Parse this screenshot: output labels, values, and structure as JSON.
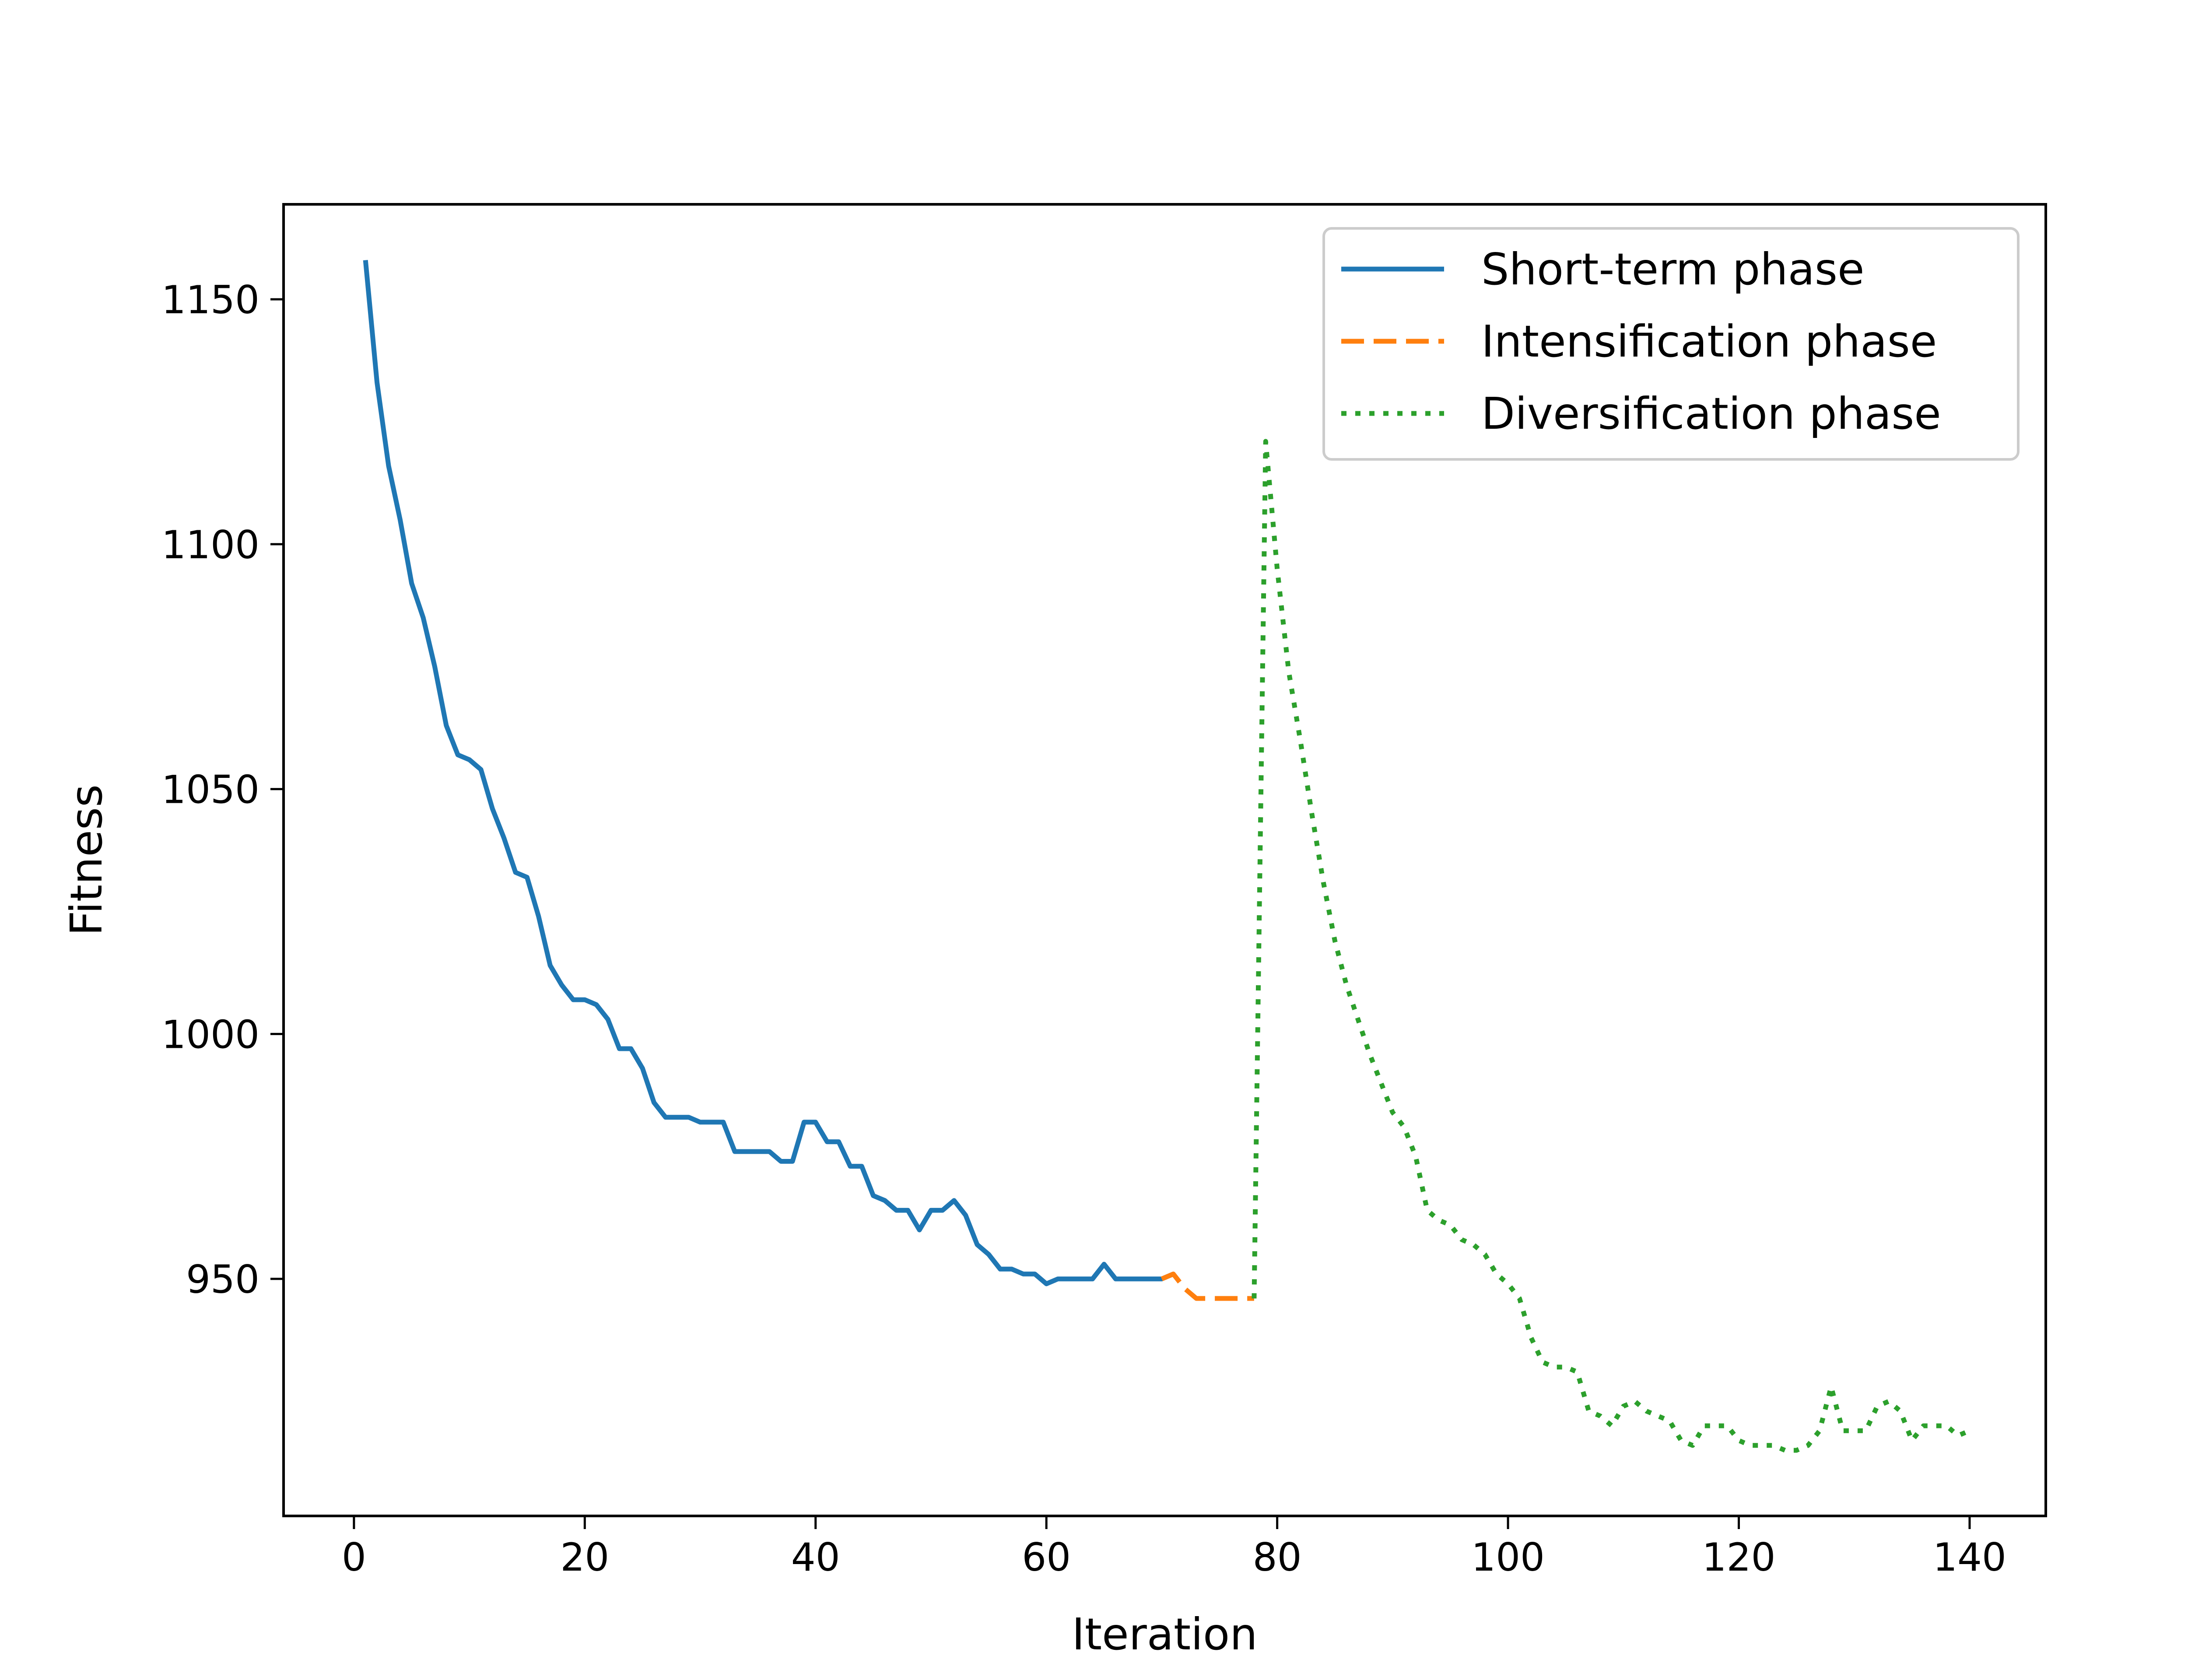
{
  "chart_data": {
    "type": "line",
    "title": "",
    "xlabel": "Iteration",
    "ylabel": "Fitness",
    "xlim": [
      -6.1,
      146.6
    ],
    "ylim": [
      901.6,
      1169.4
    ],
    "xticks": [
      0,
      20,
      40,
      60,
      80,
      100,
      120,
      140
    ],
    "yticks": [
      950,
      1000,
      1050,
      1100,
      1150
    ],
    "grid": false,
    "legend_position": "upper right",
    "series": [
      {
        "name": "Short-term phase",
        "color": "#1f77b4",
        "style": "solid",
        "x": [
          1,
          2,
          3,
          4,
          5,
          6,
          7,
          8,
          9,
          10,
          11,
          12,
          13,
          14,
          15,
          16,
          17,
          18,
          19,
          20,
          21,
          22,
          23,
          24,
          25,
          26,
          27,
          28,
          29,
          30,
          31,
          32,
          33,
          34,
          35,
          36,
          37,
          38,
          39,
          40,
          41,
          42,
          43,
          44,
          45,
          46,
          47,
          48,
          49,
          50,
          51,
          52,
          53,
          54,
          55,
          56,
          57,
          58,
          59,
          60,
          61,
          62,
          63,
          64,
          65,
          66,
          67,
          68,
          69,
          70,
          71
        ],
        "y": [
          1158,
          1133,
          1116,
          1105,
          1092,
          1085,
          1075,
          1063,
          1057,
          1056,
          1054,
          1046,
          1040,
          1033,
          1032,
          1024,
          1014,
          1010,
          1007,
          1007,
          1006,
          1003,
          997,
          997,
          993,
          986,
          983,
          983,
          983,
          982,
          982,
          982,
          976,
          976,
          976,
          976,
          974,
          974,
          982,
          982,
          978,
          978,
          973,
          973,
          967,
          966,
          964,
          964,
          960,
          964,
          964,
          966,
          963,
          957,
          955,
          952,
          952,
          951,
          951,
          949,
          950,
          950,
          950,
          950,
          953,
          950,
          950,
          950,
          950,
          950,
          951
        ]
      },
      {
        "name": "Intensification phase",
        "color": "#ff7f0e",
        "style": "dashed",
        "x": [
          70,
          71,
          72,
          73,
          74,
          75,
          76,
          77,
          78
        ],
        "y": [
          950,
          951,
          948,
          946,
          946,
          946,
          946,
          946,
          946
        ]
      },
      {
        "name": "Diversification phase",
        "color": "#2ca02c",
        "style": "dotted",
        "x": [
          78,
          79,
          80,
          81,
          82,
          83,
          84,
          85,
          86,
          87,
          88,
          89,
          90,
          91,
          92,
          93,
          94,
          95,
          96,
          97,
          98,
          99,
          100,
          101,
          102,
          103,
          104,
          105,
          106,
          107,
          108,
          109,
          110,
          111,
          112,
          113,
          114,
          115,
          116,
          117,
          118,
          119,
          120,
          121,
          122,
          123,
          124,
          125,
          126,
          127,
          128,
          129,
          130,
          131,
          132,
          133,
          134,
          135,
          136,
          137,
          138,
          139,
          140
        ],
        "y": [
          946,
          1121,
          1095,
          1074,
          1060,
          1045,
          1031,
          1019,
          1010,
          1003,
          996,
          990,
          984,
          981,
          975,
          964,
          962,
          961,
          958,
          957,
          955,
          951,
          949,
          946,
          938,
          933,
          932,
          932,
          931,
          923,
          922,
          920,
          924,
          925,
          923,
          922,
          921,
          917,
          916,
          920,
          920,
          920,
          917,
          916,
          916,
          916,
          915,
          915,
          916,
          919,
          928,
          919,
          919,
          919,
          924,
          925,
          923,
          917,
          920,
          920,
          920,
          918,
          919
        ]
      }
    ]
  }
}
